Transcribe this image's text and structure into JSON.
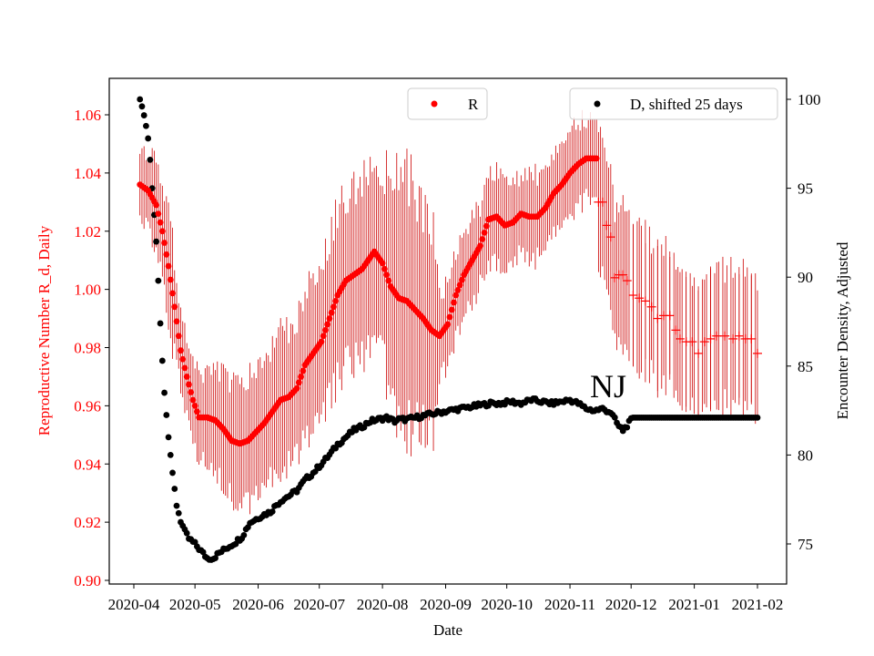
{
  "chart_data": {
    "type": "scatter",
    "title": "",
    "annotation": "NJ",
    "xlabel": "Date",
    "ylabel_left": "Reproductive Number R_d, Daily",
    "ylabel_right": "Encounter Density, Adjusted",
    "xlim": [
      0,
      318
    ],
    "ylim_left": [
      0.898,
      1.072
    ],
    "ylim_right": [
      73.0,
      101.0
    ],
    "x_ticks": [
      {
        "day": 0,
        "label": "2020-04"
      },
      {
        "day": 30,
        "label": "2020-05"
      },
      {
        "day": 61,
        "label": "2020-06"
      },
      {
        "day": 91,
        "label": "2020-07"
      },
      {
        "day": 122,
        "label": "2020-08"
      },
      {
        "day": 153,
        "label": "2020-09"
      },
      {
        "day": 183,
        "label": "2020-10"
      },
      {
        "day": 214,
        "label": "2020-11"
      },
      {
        "day": 244,
        "label": "2020-12"
      },
      {
        "day": 275,
        "label": "2021-01"
      },
      {
        "day": 306,
        "label": "2021-02"
      }
    ],
    "y_ticks_left": [
      "0.90",
      "0.92",
      "0.94",
      "0.96",
      "0.98",
      "1.00",
      "1.02",
      "1.04",
      "1.06"
    ],
    "y_ticks_right": [
      "75",
      "80",
      "85",
      "90",
      "95",
      "100"
    ],
    "colors": {
      "R": "#ff0000",
      "D": "#000000",
      "errorbar": "#cc0000"
    },
    "legend": [
      {
        "label": "R",
        "color": "#ff0000",
        "position": "top-center"
      },
      {
        "label": "D, shifted 25 days",
        "color": "#000000",
        "position": "top-right"
      }
    ],
    "series_R_knots": [
      [
        3,
        1.036
      ],
      [
        7,
        1.034
      ],
      [
        11,
        1.029
      ],
      [
        14,
        1.02
      ],
      [
        17,
        1.008
      ],
      [
        20,
        0.994
      ],
      [
        23,
        0.979
      ],
      [
        26,
        0.97
      ],
      [
        29,
        0.962
      ],
      [
        32,
        0.956
      ],
      [
        36,
        0.956
      ],
      [
        40,
        0.955
      ],
      [
        44,
        0.952
      ],
      [
        48,
        0.948
      ],
      [
        52,
        0.947
      ],
      [
        56,
        0.948
      ],
      [
        60,
        0.951
      ],
      [
        64,
        0.954
      ],
      [
        68,
        0.958
      ],
      [
        72,
        0.962
      ],
      [
        76,
        0.963
      ],
      [
        80,
        0.966
      ],
      [
        84,
        0.974
      ],
      [
        88,
        0.978
      ],
      [
        92,
        0.982
      ],
      [
        96,
        0.99
      ],
      [
        100,
        0.998
      ],
      [
        104,
        1.003
      ],
      [
        108,
        1.005
      ],
      [
        112,
        1.007
      ],
      [
        116,
        1.011
      ],
      [
        118,
        1.013
      ],
      [
        122,
        1.009
      ],
      [
        126,
        1.001
      ],
      [
        130,
        0.997
      ],
      [
        134,
        0.996
      ],
      [
        138,
        0.993
      ],
      [
        142,
        0.99
      ],
      [
        146,
        0.986
      ],
      [
        150,
        0.984
      ],
      [
        154,
        0.988
      ],
      [
        158,
        0.998
      ],
      [
        162,
        1.005
      ],
      [
        166,
        1.01
      ],
      [
        170,
        1.015
      ],
      [
        174,
        1.024
      ],
      [
        178,
        1.025
      ],
      [
        182,
        1.022
      ],
      [
        186,
        1.023
      ],
      [
        190,
        1.026
      ],
      [
        194,
        1.025
      ],
      [
        198,
        1.025
      ],
      [
        202,
        1.028
      ],
      [
        206,
        1.033
      ],
      [
        210,
        1.036
      ],
      [
        214,
        1.04
      ],
      [
        218,
        1.043
      ],
      [
        222,
        1.045
      ],
      [
        226,
        1.045
      ],
      [
        227,
        1.045
      ]
    ],
    "series_R_tail": [
      [
        228,
        1.03
      ],
      [
        230,
        1.03
      ],
      [
        232,
        1.022
      ],
      [
        234,
        1.018
      ],
      [
        236,
        1.004
      ],
      [
        238,
        1.005
      ],
      [
        240,
        1.005
      ],
      [
        242,
        1.003
      ],
      [
        245,
        0.998
      ],
      [
        248,
        0.997
      ],
      [
        251,
        0.996
      ],
      [
        254,
        0.994
      ],
      [
        257,
        0.99
      ],
      [
        260,
        0.991
      ],
      [
        263,
        0.991
      ],
      [
        266,
        0.986
      ],
      [
        268,
        0.983
      ],
      [
        271,
        0.982
      ],
      [
        274,
        0.982
      ],
      [
        277,
        0.978
      ],
      [
        280,
        0.982
      ],
      [
        283,
        0.983
      ],
      [
        286,
        0.984
      ],
      [
        290,
        0.984
      ],
      [
        294,
        0.983
      ],
      [
        297,
        0.984
      ],
      [
        300,
        0.983
      ],
      [
        303,
        0.983
      ],
      [
        306,
        0.978
      ]
    ],
    "series_D_knots": [
      [
        3,
        100.0
      ],
      [
        4,
        99.6
      ],
      [
        5,
        99.1
      ],
      [
        6,
        98.5
      ],
      [
        7,
        97.8
      ],
      [
        8,
        96.6
      ],
      [
        9,
        95.0
      ],
      [
        11,
        92.0
      ],
      [
        12,
        89.8
      ],
      [
        13,
        87.4
      ],
      [
        14,
        85.3
      ],
      [
        15,
        83.5
      ],
      [
        17,
        81.0
      ],
      [
        19,
        79.0
      ],
      [
        21,
        77.2
      ],
      [
        23,
        76.3
      ],
      [
        25,
        75.7
      ],
      [
        27,
        75.3
      ],
      [
        30,
        75.0
      ],
      [
        33,
        74.6
      ],
      [
        36,
        74.2
      ],
      [
        39,
        74.2
      ],
      [
        42,
        74.5
      ],
      [
        46,
        74.8
      ],
      [
        50,
        75.1
      ],
      [
        53,
        75.4
      ],
      [
        55,
        75.8
      ],
      [
        57,
        76.2
      ],
      [
        60,
        76.4
      ],
      [
        63,
        76.6
      ],
      [
        67,
        76.8
      ],
      [
        70,
        77.2
      ],
      [
        73,
        77.5
      ],
      [
        76,
        77.7
      ],
      [
        80,
        78.0
      ],
      [
        84,
        78.6
      ],
      [
        88,
        79.0
      ],
      [
        92,
        79.5
      ],
      [
        96,
        80.0
      ],
      [
        100,
        80.6
      ],
      [
        104,
        81.0
      ],
      [
        108,
        81.4
      ],
      [
        112,
        81.6
      ],
      [
        116,
        81.9
      ],
      [
        120,
        82.0
      ],
      [
        124,
        82.1
      ],
      [
        128,
        81.9
      ],
      [
        130,
        82.0
      ],
      [
        134,
        82.0
      ],
      [
        138,
        82.1
      ],
      [
        142,
        82.2
      ],
      [
        146,
        82.3
      ],
      [
        150,
        82.4
      ],
      [
        155,
        82.5
      ],
      [
        160,
        82.6
      ],
      [
        165,
        82.7
      ],
      [
        170,
        82.8
      ],
      [
        175,
        82.9
      ],
      [
        180,
        82.9
      ],
      [
        185,
        83.0
      ],
      [
        190,
        82.9
      ],
      [
        195,
        83.1
      ],
      [
        200,
        83.0
      ],
      [
        205,
        82.9
      ],
      [
        210,
        83.0
      ],
      [
        214,
        83.1
      ],
      [
        218,
        82.9
      ],
      [
        222,
        82.6
      ],
      [
        226,
        82.5
      ],
      [
        230,
        82.6
      ],
      [
        234,
        82.4
      ],
      [
        238,
        81.6
      ],
      [
        240,
        81.4
      ],
      [
        243,
        81.8
      ],
      [
        245,
        82.1
      ],
      [
        306,
        82.1
      ]
    ]
  }
}
